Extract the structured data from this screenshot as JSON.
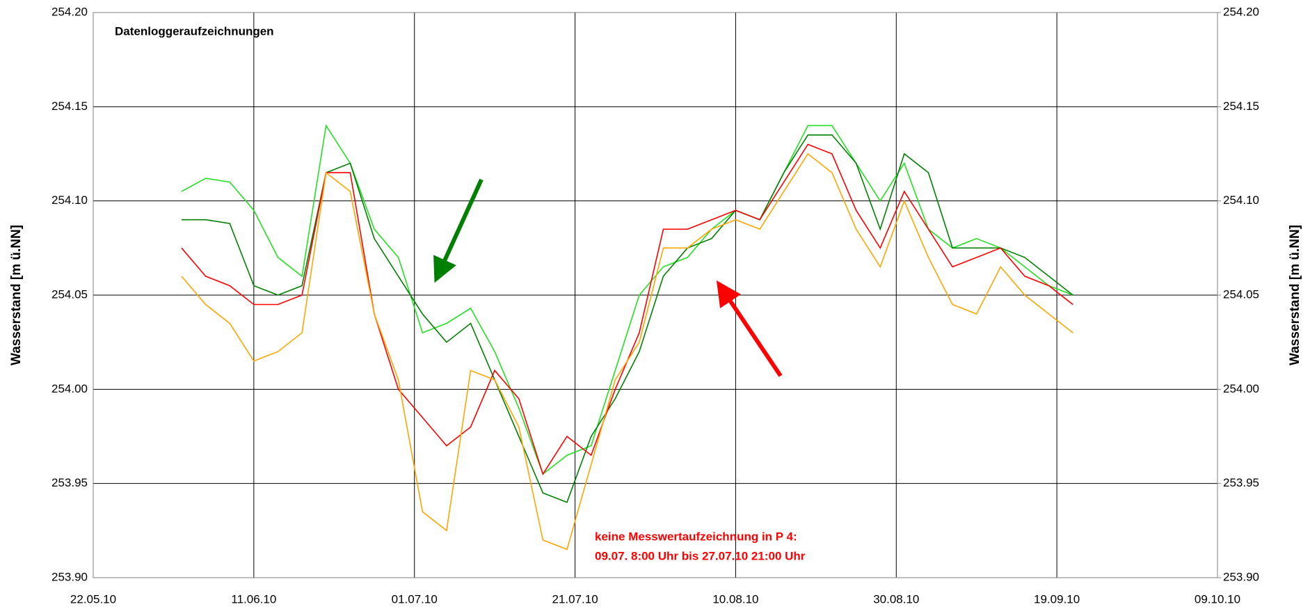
{
  "chart_data": {
    "type": "line",
    "annotations": [
      "Datenloggeraufzeichnungen",
      "keine Messwertaufzeichnung in P 4:",
      "09.07. 8:00 Uhr bis 27.07.10 21:00 Uhr"
    ],
    "ylabel": "Wasserstand [m ü.NN]",
    "y2label": "Wasserstand [m ü.NN]",
    "x": [
      "2010-06-02",
      "2010-06-05",
      "2010-06-08",
      "2010-06-11",
      "2010-06-14",
      "2010-06-17",
      "2010-06-20",
      "2010-06-23",
      "2010-06-26",
      "2010-06-29",
      "2010-07-02",
      "2010-07-05",
      "2010-07-08",
      "2010-07-11",
      "2010-07-14",
      "2010-07-17",
      "2010-07-20",
      "2010-07-23",
      "2010-07-26",
      "2010-07-29",
      "2010-08-01",
      "2010-08-04",
      "2010-08-07",
      "2010-08-10",
      "2010-08-13",
      "2010-08-16",
      "2010-08-19",
      "2010-08-22",
      "2010-08-25",
      "2010-08-28",
      "2010-08-31",
      "2010-09-03",
      "2010-09-06",
      "2010-09-09",
      "2010-09-12",
      "2010-09-15",
      "2010-09-18",
      "2010-09-21"
    ],
    "series": [
      {
        "color": "#22e022",
        "values": [
          254.105,
          254.112,
          254.11,
          254.095,
          254.07,
          254.06,
          254.14,
          254.12,
          254.085,
          254.07,
          254.03,
          254.035,
          254.043,
          254.02,
          253.99,
          253.955,
          253.965,
          253.97,
          254.01,
          254.05,
          254.065,
          254.07,
          254.085,
          254.095,
          254.09,
          254.115,
          254.14,
          254.14,
          254.12,
          254.1,
          254.12,
          254.085,
          254.075,
          254.08,
          254.075,
          254.065,
          254.055,
          254.05
        ]
      },
      {
        "color": "#008000",
        "values": [
          254.09,
          254.09,
          254.088,
          254.055,
          254.05,
          254.055,
          254.115,
          254.12,
          254.08,
          254.06,
          254.04,
          254.025,
          254.035,
          254.005,
          253.975,
          253.945,
          253.94,
          253.975,
          253.995,
          254.02,
          254.06,
          254.075,
          254.08,
          254.095,
          254.09,
          254.115,
          254.135,
          254.135,
          254.12,
          254.085,
          254.125,
          254.115,
          254.075,
          254.075,
          254.075,
          254.07,
          254.06,
          254.05
        ]
      },
      {
        "color": "#ff0000",
        "values": [
          254.075,
          254.06,
          254.055,
          254.045,
          254.045,
          254.05,
          254.115,
          254.115,
          254.04,
          254.0,
          253.985,
          253.97,
          253.98,
          254.01,
          253.995,
          253.955,
          253.975,
          253.965,
          254.0,
          254.03,
          254.085,
          254.085,
          254.09,
          254.095,
          254.09,
          254.11,
          254.13,
          254.125,
          254.095,
          254.075,
          254.105,
          254.085,
          254.065,
          254.07,
          254.075,
          254.06,
          254.055,
          254.045
        ]
      },
      {
        "color": "#ffa500",
        "values": [
          254.06,
          254.045,
          254.035,
          254.015,
          254.02,
          254.03,
          254.115,
          254.105,
          254.04,
          254.005,
          253.935,
          253.925,
          254.01,
          254.005,
          253.98,
          253.92,
          253.915,
          253.96,
          254.005,
          254.025,
          254.075,
          254.075,
          254.085,
          254.09,
          254.085,
          254.105,
          254.125,
          254.115,
          254.085,
          254.065,
          254.1,
          254.07,
          254.045,
          254.04,
          254.065,
          254.05,
          254.04,
          254.03
        ]
      }
    ],
    "xlim": [
      "2010-05-22",
      "2010-10-09"
    ],
    "xticks": [
      {
        "value": "2010-05-22",
        "label": "22.05.10"
      },
      {
        "value": "2010-06-11",
        "label": "11.06.10"
      },
      {
        "value": "2010-07-01",
        "label": "01.07.10"
      },
      {
        "value": "2010-07-21",
        "label": "21.07.10"
      },
      {
        "value": "2010-08-10",
        "label": "10.08.10"
      },
      {
        "value": "2010-08-30",
        "label": "30.08.10"
      },
      {
        "value": "2010-09-19",
        "label": "19.09.10"
      },
      {
        "value": "2010-10-09",
        "label": "09.10.10"
      }
    ],
    "ylim": [
      253.9,
      254.2
    ],
    "yticks": [
      {
        "value": 253.9,
        "label": "253.90"
      },
      {
        "value": 253.95,
        "label": "253.95"
      },
      {
        "value": 254.0,
        "label": "254.00"
      },
      {
        "value": 254.05,
        "label": "254.05"
      },
      {
        "value": 254.1,
        "label": "254.10"
      },
      {
        "value": 254.15,
        "label": "254.15"
      },
      {
        "value": 254.2,
        "label": "254.20"
      }
    ],
    "y2lim": [
      253.9,
      254.2
    ],
    "y2ticks": [
      {
        "value": 253.9,
        "label": "253.90"
      },
      {
        "value": 253.95,
        "label": "253.95"
      },
      {
        "value": 254.0,
        "label": "254.00"
      },
      {
        "value": 254.05,
        "label": "254.05"
      },
      {
        "value": 254.1,
        "label": "254.10"
      },
      {
        "value": 254.15,
        "label": "254.15"
      },
      {
        "value": 254.2,
        "label": "254.20"
      }
    ],
    "grid": true
  }
}
